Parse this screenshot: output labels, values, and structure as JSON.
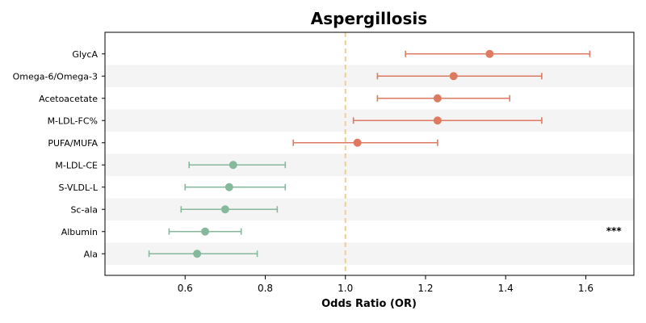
{
  "chart_data": {
    "type": "forest",
    "title": "Aspergillosis",
    "xlabel": "Odds Ratio (OR)",
    "ylabel": "",
    "xlim": [
      0.4,
      1.72
    ],
    "xticks": [
      0.6,
      0.8,
      1.0,
      1.2,
      1.4,
      1.6
    ],
    "xtick_labels": [
      "0.6",
      "0.8",
      "1.0",
      "1.2",
      "1.4",
      "1.6"
    ],
    "reference_line": 1.0,
    "grid": false,
    "row_banding": true,
    "colors": {
      "above_one": "#dd7a60",
      "below_one": "#86b89c",
      "reference_line": "#f2cd91",
      "band": "#f4f4f4"
    },
    "rows": [
      {
        "label": "GlycA",
        "or": 1.36,
        "ci_low": 1.15,
        "ci_high": 1.61,
        "direction": "above_one"
      },
      {
        "label": "Omega-6/Omega-3",
        "or": 1.27,
        "ci_low": 1.08,
        "ci_high": 1.49,
        "direction": "above_one"
      },
      {
        "label": "Acetoacetate",
        "or": 1.23,
        "ci_low": 1.08,
        "ci_high": 1.41,
        "direction": "above_one"
      },
      {
        "label": "M-LDL-FC%",
        "or": 1.23,
        "ci_low": 1.02,
        "ci_high": 1.49,
        "direction": "above_one"
      },
      {
        "label": "PUFA/MUFA",
        "or": 1.03,
        "ci_low": 0.87,
        "ci_high": 1.23,
        "direction": "above_one"
      },
      {
        "label": "M-LDL-CE",
        "or": 0.72,
        "ci_low": 0.61,
        "ci_high": 0.85,
        "direction": "below_one"
      },
      {
        "label": "S-VLDL-L",
        "or": 0.71,
        "ci_low": 0.6,
        "ci_high": 0.85,
        "direction": "below_one"
      },
      {
        "label": "Sc-ala",
        "or": 0.7,
        "ci_low": 0.59,
        "ci_high": 0.83,
        "direction": "below_one"
      },
      {
        "label": "Albumin",
        "or": 0.65,
        "ci_low": 0.56,
        "ci_high": 0.74,
        "direction": "below_one"
      },
      {
        "label": "Ala",
        "or": 0.63,
        "ci_low": 0.51,
        "ci_high": 0.78,
        "direction": "below_one"
      }
    ],
    "annotations": [
      {
        "text": "***",
        "row": "Albumin",
        "x": 1.67
      }
    ]
  }
}
